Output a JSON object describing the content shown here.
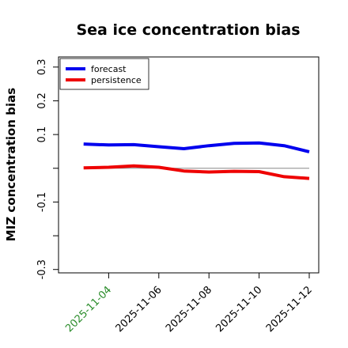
{
  "chart_data": {
    "type": "line",
    "title": "Sea ice concentration bias",
    "xlabel": "",
    "ylabel": "MIZ concentration bias",
    "x": [
      "2025-11-03",
      "2025-11-04",
      "2025-11-05",
      "2025-11-06",
      "2025-11-07",
      "2025-11-08",
      "2025-11-09",
      "2025-11-10",
      "2025-11-11",
      "2025-11-12"
    ],
    "xlim": [
      "2025-11-02",
      "2025-11-12"
    ],
    "ylim": [
      -0.31,
      0.33
    ],
    "yticks": [
      0.3,
      0.2,
      0.1,
      -0.1,
      -0.3
    ],
    "yticks_minor": [
      0.0,
      -0.2
    ],
    "xticks": [
      "2025-11-04",
      "2025-11-06",
      "2025-11-08",
      "2025-11-10",
      "2025-11-12"
    ],
    "xtick_colors": [
      "#2a8c2a",
      "#000000",
      "#000000",
      "#000000",
      "#000000"
    ],
    "reference_line": 0,
    "grid": false,
    "legend_position": "top-left",
    "series": [
      {
        "name": "forecast",
        "color": "#0000ee",
        "values": [
          0.072,
          0.069,
          0.07,
          0.064,
          0.058,
          0.067,
          0.074,
          0.075,
          0.067,
          0.049
        ]
      },
      {
        "name": "persistence",
        "color": "#ee0000",
        "values": [
          0.001,
          0.003,
          0.007,
          0.003,
          -0.008,
          -0.011,
          -0.009,
          -0.01,
          -0.025,
          -0.03
        ]
      }
    ]
  }
}
